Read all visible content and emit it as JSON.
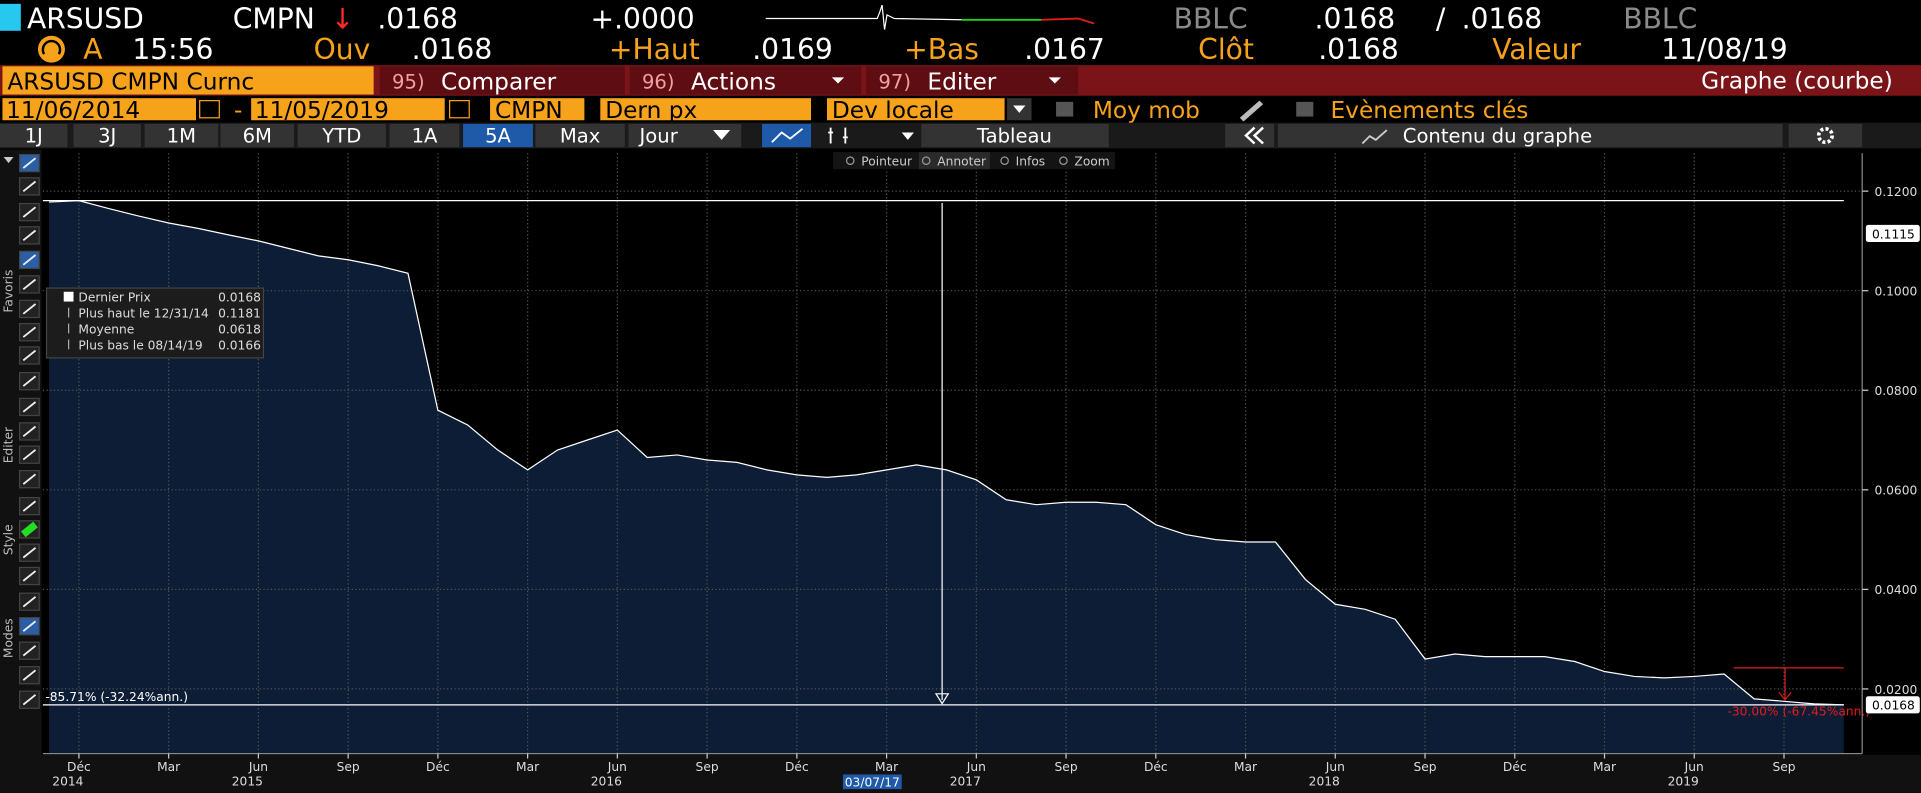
{
  "header": {
    "ticker": "ARSUSD",
    "source": "CMPN",
    "arrow": "↓",
    "last": ".0168",
    "change": "+.0000",
    "bid_source": "BBLC",
    "bid": ".0168",
    "sep": "/",
    "ask": ".0168",
    "ask_source": "BBLC",
    "flag": "A",
    "time": "15:56",
    "open_label": "Ouv",
    "open": ".0168",
    "high_label": "+Haut",
    "high": ".0169",
    "low_label": "+Bas",
    "low": ".0167",
    "close_label": "Clôt",
    "close": ".0168",
    "value_label": "Valeur",
    "value_date": "11/08/19"
  },
  "command": {
    "security": "ARSUSD CMPN Curnc",
    "buttons": [
      {
        "num": "95)",
        "label": "Comparer"
      },
      {
        "num": "96)",
        "label": "Actions"
      },
      {
        "num": "97)",
        "label": "Editer"
      }
    ],
    "view": "Graphe (courbe)"
  },
  "settings": {
    "start": "11/06/2014",
    "dash": "-",
    "end": "11/05/2019",
    "source": "CMPN",
    "field": "Dern px",
    "currency": "Dev locale",
    "moving_avg": "Moy mob",
    "events": "Evènements clés"
  },
  "periods": [
    "1J",
    "3J",
    "1M",
    "6M",
    "YTD",
    "1A",
    "5A",
    "Max"
  ],
  "selected_period": 6,
  "frequency": "Jour",
  "table": "Tableau",
  "contents": "Contenu du graphe",
  "tools": [
    "Pointeur",
    "Annoter",
    "Infos",
    "Zoom"
  ],
  "sidebar": [
    "Favoris",
    "Editer",
    "Style",
    "Modes"
  ],
  "chart_data": {
    "type": "line",
    "x": [
      "2014-11",
      "2014-12",
      "2015-01",
      "2015-02",
      "2015-03",
      "2015-04",
      "2015-05",
      "2015-06",
      "2015-07",
      "2015-08",
      "2015-09",
      "2015-10",
      "2015-11",
      "2015-12",
      "2016-01",
      "2016-02",
      "2016-03",
      "2016-04",
      "2016-05",
      "2016-06",
      "2016-07",
      "2016-08",
      "2016-09",
      "2016-10",
      "2016-11",
      "2016-12",
      "2017-01",
      "2017-02",
      "2017-03",
      "2017-04",
      "2017-05",
      "2017-06",
      "2017-07",
      "2017-08",
      "2017-09",
      "2017-10",
      "2017-11",
      "2017-12",
      "2018-01",
      "2018-02",
      "2018-03",
      "2018-04",
      "2018-05",
      "2018-06",
      "2018-07",
      "2018-08",
      "2018-09",
      "2018-10",
      "2018-11",
      "2018-12",
      "2019-01",
      "2019-02",
      "2019-03",
      "2019-04",
      "2019-05",
      "2019-06",
      "2019-07",
      "2019-08",
      "2019-09",
      "2019-10",
      "2019-11"
    ],
    "series": [
      {
        "name": "Dernier Prix",
        "color": "#ffffff",
        "legend_value": "0.0168",
        "values": [
          0.1178,
          0.1181,
          0.1165,
          0.115,
          0.1136,
          0.1125,
          0.1112,
          0.11,
          0.1085,
          0.107,
          0.1062,
          0.105,
          0.1035,
          0.076,
          0.073,
          0.068,
          0.064,
          0.068,
          0.07,
          0.072,
          0.0665,
          0.067,
          0.066,
          0.0655,
          0.064,
          0.063,
          0.0625,
          0.063,
          0.064,
          0.065,
          0.064,
          0.062,
          0.058,
          0.057,
          0.0575,
          0.0575,
          0.057,
          0.053,
          0.051,
          0.05,
          0.0495,
          0.0495,
          0.042,
          0.037,
          0.036,
          0.034,
          0.026,
          0.027,
          0.0265,
          0.0265,
          0.0265,
          0.0255,
          0.0235,
          0.0225,
          0.0222,
          0.0225,
          0.023,
          0.018,
          0.0175,
          0.017,
          0.0168
        ]
      }
    ],
    "stats": [
      {
        "name": "Plus haut le 12/31/14",
        "value": "0.1181"
      },
      {
        "name": "Moyenne",
        "value": "0.0618"
      },
      {
        "name": "Plus bas le 08/14/19",
        "value": "0.0166"
      }
    ],
    "area_color": "#0c1d35",
    "xlim": [
      "2014-11",
      "2019-11"
    ],
    "ylim": [
      0.007,
      0.1276
    ],
    "yticks": [
      {
        "value": 0.02,
        "label": "0.0200"
      },
      {
        "value": 0.04,
        "label": "0.0400"
      },
      {
        "value": 0.06,
        "label": "0.0600"
      },
      {
        "value": 0.08,
        "label": "0.0800"
      },
      {
        "value": 0.1,
        "label": "0.1000"
      },
      {
        "value": 0.12,
        "label": "0.1200"
      }
    ],
    "xticks": [
      {
        "value": "2014-12",
        "label": "Déc"
      },
      {
        "value": "2015-03",
        "label": "Mar"
      },
      {
        "value": "2015-06",
        "label": "Jun"
      },
      {
        "value": "2015-09",
        "label": "Sep"
      },
      {
        "value": "2015-12",
        "label": "Déc"
      },
      {
        "value": "2016-03",
        "label": "Mar"
      },
      {
        "value": "2016-06",
        "label": "Jun"
      },
      {
        "value": "2016-09",
        "label": "Sep"
      },
      {
        "value": "2016-12",
        "label": "Déc"
      },
      {
        "value": "2017-03",
        "label": "Mar"
      },
      {
        "value": "2017-06",
        "label": "Jun"
      },
      {
        "value": "2017-09",
        "label": "Sep"
      },
      {
        "value": "2017-12",
        "label": "Déc"
      },
      {
        "value": "2018-03",
        "label": "Mar"
      },
      {
        "value": "2018-06",
        "label": "Jun"
      },
      {
        "value": "2018-09",
        "label": "Sep"
      },
      {
        "value": "2018-12",
        "label": "Déc"
      },
      {
        "value": "2019-03",
        "label": "Mar"
      },
      {
        "value": "2019-06",
        "label": "Jun"
      },
      {
        "value": "2019-09",
        "label": "Sep"
      }
    ],
    "year_ticks": [
      {
        "value": "2014-12",
        "label": "2014"
      },
      {
        "value": "2015-06",
        "label": "2015"
      },
      {
        "value": "2016-06",
        "label": "2016"
      },
      {
        "value": "2017-06",
        "label": "2017"
      },
      {
        "value": "2018-06",
        "label": "2018"
      },
      {
        "value": "2019-06",
        "label": "2019"
      }
    ],
    "grid": true,
    "high_line": 0.1181,
    "last": {
      "value": 0.0168,
      "label": "0.0168"
    },
    "cursor": {
      "value": 0.1115,
      "label": "0.1115"
    },
    "annotations": [
      "-85.71% (-32.24%ann.)",
      "-30.00% (-67.45%ann.)"
    ],
    "date_marker": "03/07/17"
  }
}
